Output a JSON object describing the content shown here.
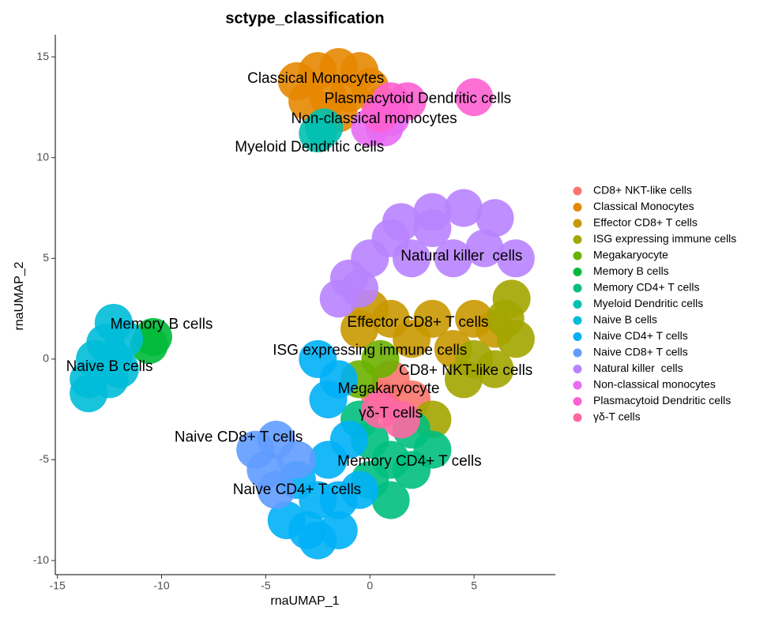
{
  "chart_data": {
    "type": "scatter",
    "title": "sctype_classification",
    "xlabel": "rnaUMAP_1",
    "ylabel": "rnaUMAP_2",
    "xlim": [
      -15.1,
      8.9
    ],
    "ylim": [
      -10.7,
      16.1
    ],
    "xticks": [
      -15,
      -10,
      -5,
      0,
      5
    ],
    "yticks": [
      -10,
      -5,
      0,
      5,
      10,
      15
    ],
    "series": [
      {
        "name": "CD8+ NKT-like cells",
        "color": "#F8766D",
        "x": [
          1,
          0.5,
          2
        ],
        "y": [
          -1,
          -2,
          -2
        ]
      },
      {
        "name": "Classical Monocytes",
        "color": "#E58700",
        "x": [
          -3.5,
          -2.5,
          -1.5,
          -0.5,
          -3,
          -2,
          -1,
          0,
          0.5,
          -1.5
        ],
        "y": [
          13.8,
          14.3,
          14.5,
          14.3,
          12.8,
          13,
          13.2,
          13.5,
          12.6,
          12.2
        ]
      },
      {
        "name": "Effector CD8+ T cells",
        "color": "#C99800",
        "x": [
          1,
          3,
          5,
          2,
          4,
          6,
          -0.5,
          0
        ],
        "y": [
          2,
          2,
          2,
          1,
          0.5,
          1.5,
          1.5,
          2.5
        ]
      },
      {
        "name": "ISG expressing immune cells",
        "color": "#A3A500",
        "x": [
          6.8,
          7,
          6,
          4.5,
          3,
          6.5,
          5
        ],
        "y": [
          3,
          1,
          -0.5,
          -1,
          -3,
          2,
          0
        ]
      },
      {
        "name": "Megakaryocyte",
        "color": "#6BB100",
        "x": [
          -0.5,
          0.5
        ],
        "y": [
          -1,
          0
        ]
      },
      {
        "name": "Memory B cells",
        "color": "#00BA38",
        "x": [
          -10.4,
          -10.6
        ],
        "y": [
          1.1,
          0.7
        ]
      },
      {
        "name": "Memory CD4+ T cells",
        "color": "#00BF7D",
        "x": [
          0,
          1,
          2,
          1,
          0,
          2,
          3,
          -0.5
        ],
        "y": [
          -4,
          -5,
          -5.5,
          -7,
          -6,
          -3.5,
          -4.5,
          -3
        ]
      },
      {
        "name": "Myeloid Dendritic cells",
        "color": "#00C0AF",
        "x": [
          -2.5,
          -2.2
        ],
        "y": [
          11.2,
          11.5
        ]
      },
      {
        "name": "Naive B cells",
        "color": "#00BCD8",
        "x": [
          -12.3,
          -12.7,
          -13.2,
          -12.3,
          -13.5,
          -12.5,
          -13.5,
          -12,
          -11.8
        ],
        "y": [
          1.8,
          0.8,
          0,
          0,
          -1,
          -1,
          -1.7,
          -0.5,
          1
        ]
      },
      {
        "name": "Naive CD4+ T cells",
        "color": "#00B0F6",
        "x": [
          -3.5,
          -2.5,
          -1.5,
          -0.5,
          -3,
          -1.5,
          -2,
          -1,
          -2,
          -2.5,
          -1.5,
          -4,
          -2.5
        ],
        "y": [
          -6,
          -7,
          -7,
          -6.5,
          -8.5,
          -8.5,
          -5,
          -4,
          -2,
          0,
          -1,
          -8,
          -9
        ]
      },
      {
        "name": "Naive CD8+ T cells",
        "color": "#619CFF",
        "x": [
          -5.5,
          -5,
          -4.5,
          -4.5,
          -3.5
        ],
        "y": [
          -4.5,
          -5.5,
          -4,
          -6.5,
          -5
        ]
      },
      {
        "name": "Natural killer  cells",
        "color": "#B983FF",
        "x": [
          1.5,
          3,
          4.5,
          6,
          7,
          0,
          -1,
          -1.5,
          2,
          4,
          5.5,
          -0.5,
          1,
          3
        ],
        "y": [
          6.8,
          7.3,
          7.5,
          7,
          5,
          5,
          4,
          3,
          5,
          5,
          5.5,
          3.5,
          6,
          6.5
        ]
      },
      {
        "name": "Non-classical monocytes",
        "color": "#E76BF3",
        "x": [
          0,
          0.7,
          1
        ],
        "y": [
          11.5,
          11.5,
          12
        ]
      },
      {
        "name": "Plasmacytoid Dendritic cells",
        "color": "#FD61D1",
        "x": [
          1,
          1.8,
          0.5,
          5
        ],
        "y": [
          12.8,
          12.8,
          12.2,
          13
        ]
      },
      {
        "name": "γδ-T cells",
        "color": "#FF67A4",
        "x": [
          0.5,
          1.5
        ],
        "y": [
          -2.5,
          -3
        ]
      }
    ],
    "annotations": [
      {
        "text": "Classical Monocytes",
        "x": -2.6,
        "y": 13.9
      },
      {
        "text": "Plasmacytoid Dendritic cells",
        "x": 2.3,
        "y": 12.9
      },
      {
        "text": "Non-classical monocytes",
        "x": 0.2,
        "y": 11.9
      },
      {
        "text": "Myeloid Dendritic cells",
        "x": -2.9,
        "y": 10.5
      },
      {
        "text": "Natural killer  cells",
        "x": 4.4,
        "y": 5.1
      },
      {
        "text": "Memory B cells",
        "x": -10,
        "y": 1.7
      },
      {
        "text": "Naive B cells",
        "x": -12.5,
        "y": -0.4
      },
      {
        "text": "Effector CD8+ T cells",
        "x": 2.3,
        "y": 1.8
      },
      {
        "text": "ISG expressing immune cells",
        "x": 0,
        "y": 0.4
      },
      {
        "text": "CD8+ NKT-like cells",
        "x": 4.6,
        "y": -0.6
      },
      {
        "text": "Megakaryocyte",
        "x": 0.9,
        "y": -1.5
      },
      {
        "text": "γδ-T cells",
        "x": 1,
        "y": -2.7
      },
      {
        "text": "Naive CD8+ T cells",
        "x": -6.3,
        "y": -3.9
      },
      {
        "text": "Memory CD4+ T cells",
        "x": 1.9,
        "y": -5.1
      },
      {
        "text": "Naive CD4+ T cells",
        "x": -3.5,
        "y": -6.5
      }
    ]
  }
}
